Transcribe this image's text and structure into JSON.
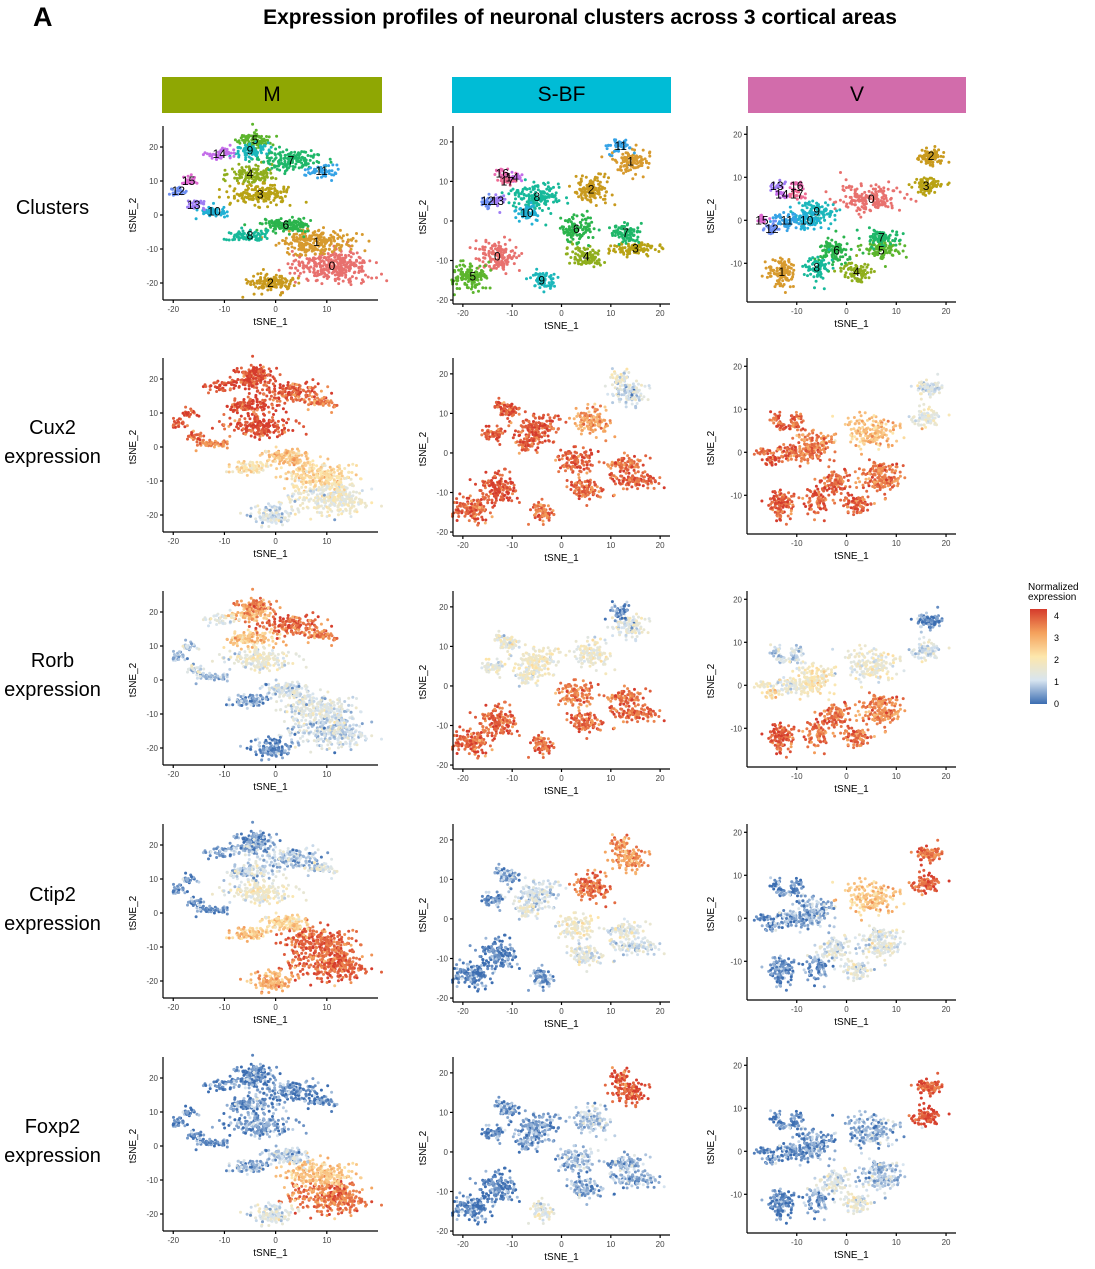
{
  "panel_letter": "A",
  "title": "Expression profiles of neuronal clusters across 3 cortical areas",
  "columns": [
    {
      "name": "M",
      "color": "#8fa703"
    },
    {
      "name": "S-BF",
      "color": "#00bcd6"
    },
    {
      "name": "V",
      "color": "#d26cab"
    }
  ],
  "rows": [
    {
      "label_line1": "Clusters",
      "label_line2": ""
    },
    {
      "label_line1": "Cux2",
      "label_line2": "expression"
    },
    {
      "label_line1": "Rorb",
      "label_line2": "expression"
    },
    {
      "label_line1": "Ctip2",
      "label_line2": "expression"
    },
    {
      "label_line1": "Foxp2",
      "label_line2": "expression"
    }
  ],
  "legend": {
    "title_line1": "Normalized",
    "title_line2": "expression",
    "ticks": [
      "4",
      "3",
      "2",
      "1",
      "0"
    ],
    "colors": [
      "#3b6db1",
      "#d8e5f0",
      "#fde7ac",
      "#f4a15c",
      "#d53b2c"
    ]
  },
  "chart_data": {
    "type": "scatter",
    "xlabel": "tSNE_1",
    "ylabel": "tSNE_2",
    "axes": {
      "M": {
        "xlim": [
          -22,
          20
        ],
        "ylim": [
          -25,
          25
        ],
        "xticks": [
          -20,
          -10,
          0,
          10
        ],
        "yticks": [
          20,
          10,
          0,
          -10,
          -20
        ]
      },
      "S-BF": {
        "xlim": [
          -22,
          22
        ],
        "ylim": [
          -21,
          23
        ],
        "xticks": [
          -20,
          -10,
          0,
          10,
          20
        ],
        "yticks": [
          20,
          10,
          0,
          -10,
          -20
        ]
      },
      "V": {
        "xlim": [
          -20,
          22
        ],
        "ylim": [
          -19,
          21
        ],
        "xticks": [
          -10,
          0,
          10,
          20
        ],
        "yticks": [
          20,
          10,
          0,
          -10
        ]
      }
    },
    "clusters": {
      "M": [
        {
          "id": "0",
          "x": 11,
          "y": -15,
          "sx": 6,
          "sy": 4,
          "n": 320
        },
        {
          "id": "1",
          "x": 8,
          "y": -8,
          "sx": 6,
          "sy": 3,
          "n": 230
        },
        {
          "id": "2",
          "x": -1,
          "y": -20,
          "sx": 3.5,
          "sy": 2.5,
          "n": 130
        },
        {
          "id": "3",
          "x": -3,
          "y": 6,
          "sx": 5,
          "sy": 2.5,
          "n": 170
        },
        {
          "id": "4",
          "x": -5,
          "y": 12,
          "sx": 4,
          "sy": 2,
          "n": 120
        },
        {
          "id": "5",
          "x": -4,
          "y": 22,
          "sx": 3,
          "sy": 1.8,
          "n": 90
        },
        {
          "id": "6",
          "x": 2,
          "y": -3,
          "sx": 4,
          "sy": 2,
          "n": 130
        },
        {
          "id": "7",
          "x": 3,
          "y": 16,
          "sx": 5,
          "sy": 2.5,
          "n": 150
        },
        {
          "id": "8",
          "x": -5,
          "y": -6,
          "sx": 3,
          "sy": 1.5,
          "n": 80
        },
        {
          "id": "9",
          "x": -5,
          "y": 19,
          "sx": 3,
          "sy": 1.5,
          "n": 80
        },
        {
          "id": "10",
          "x": -12,
          "y": 1,
          "sx": 2.5,
          "sy": 1.2,
          "n": 50
        },
        {
          "id": "11",
          "x": 9,
          "y": 13,
          "sx": 2.5,
          "sy": 1.5,
          "n": 50
        },
        {
          "id": "12",
          "x": -19,
          "y": 7,
          "sx": 1.3,
          "sy": 1.2,
          "n": 25
        },
        {
          "id": "13",
          "x": -16,
          "y": 3,
          "sx": 1.5,
          "sy": 1.2,
          "n": 30
        },
        {
          "id": "14",
          "x": -11,
          "y": 18,
          "sx": 2.5,
          "sy": 1.5,
          "n": 40
        },
        {
          "id": "15",
          "x": -17,
          "y": 10,
          "sx": 1.3,
          "sy": 1.2,
          "n": 25
        }
      ],
      "S-BF": [
        {
          "id": "0",
          "x": -13,
          "y": -9,
          "sx": 3,
          "sy": 3,
          "n": 140
        },
        {
          "id": "1",
          "x": 14,
          "y": 15,
          "sx": 3,
          "sy": 2.5,
          "n": 110
        },
        {
          "id": "2",
          "x": 6,
          "y": 8,
          "sx": 3,
          "sy": 3,
          "n": 120
        },
        {
          "id": "3",
          "x": 15,
          "y": -7,
          "sx": 4,
          "sy": 1.5,
          "n": 100
        },
        {
          "id": "4",
          "x": 5,
          "y": -9,
          "sx": 3,
          "sy": 2,
          "n": 100
        },
        {
          "id": "5",
          "x": -18,
          "y": -14,
          "sx": 3,
          "sy": 3,
          "n": 140
        },
        {
          "id": "6",
          "x": 3,
          "y": -2,
          "sx": 3,
          "sy": 3,
          "n": 110
        },
        {
          "id": "7",
          "x": 13,
          "y": -3,
          "sx": 3,
          "sy": 2,
          "n": 90
        },
        {
          "id": "8",
          "x": -5,
          "y": 6,
          "sx": 4,
          "sy": 3,
          "n": 150
        },
        {
          "id": "9",
          "x": -4,
          "y": -15,
          "sx": 2,
          "sy": 2,
          "n": 70
        },
        {
          "id": "10",
          "x": -7,
          "y": 2,
          "sx": 2,
          "sy": 1.8,
          "n": 50
        },
        {
          "id": "11",
          "x": 12,
          "y": 19,
          "sx": 1.8,
          "sy": 1.5,
          "n": 40
        },
        {
          "id": "12",
          "x": -15,
          "y": 5,
          "sx": 1,
          "sy": 1.5,
          "n": 25
        },
        {
          "id": "13",
          "x": -13,
          "y": 5,
          "sx": 1,
          "sy": 1.5,
          "n": 25
        },
        {
          "id": "14",
          "x": -10,
          "y": 11,
          "sx": 1.5,
          "sy": 1,
          "n": 25
        },
        {
          "id": "16",
          "x": -12,
          "y": 12,
          "sx": 1.5,
          "sy": 1,
          "n": 25
        },
        {
          "id": "17",
          "x": -11,
          "y": 10,
          "sx": 1.5,
          "sy": 1,
          "n": 25
        }
      ],
      "V": [
        {
          "id": "0",
          "x": 5,
          "y": 5,
          "sx": 5,
          "sy": 3,
          "n": 170
        },
        {
          "id": "1",
          "x": -13,
          "y": -12,
          "sx": 2.5,
          "sy": 3,
          "n": 110
        },
        {
          "id": "2",
          "x": 17,
          "y": 15,
          "sx": 2.5,
          "sy": 1.5,
          "n": 90
        },
        {
          "id": "3",
          "x": 16,
          "y": 8,
          "sx": 2.5,
          "sy": 1.8,
          "n": 90
        },
        {
          "id": "4",
          "x": 2,
          "y": -12,
          "sx": 2.5,
          "sy": 2,
          "n": 80
        },
        {
          "id": "5",
          "x": 7,
          "y": -7,
          "sx": 3,
          "sy": 2,
          "n": 90
        },
        {
          "id": "6",
          "x": -2,
          "y": -7,
          "sx": 3,
          "sy": 2.5,
          "n": 100
        },
        {
          "id": "7",
          "x": 7,
          "y": -4,
          "sx": 3,
          "sy": 1.5,
          "n": 70
        },
        {
          "id": "8",
          "x": -6,
          "y": -11,
          "sx": 2,
          "sy": 2.5,
          "n": 70
        },
        {
          "id": "9",
          "x": -6,
          "y": 2,
          "sx": 3,
          "sy": 2,
          "n": 90
        },
        {
          "id": "10",
          "x": -8,
          "y": 0,
          "sx": 3,
          "sy": 2,
          "n": 80
        },
        {
          "id": "11",
          "x": -12,
          "y": 0,
          "sx": 2,
          "sy": 1.5,
          "n": 50
        },
        {
          "id": "12",
          "x": -15,
          "y": -2,
          "sx": 1.2,
          "sy": 1.2,
          "n": 30
        },
        {
          "id": "13",
          "x": -14,
          "y": 8,
          "sx": 1.2,
          "sy": 1,
          "n": 20
        },
        {
          "id": "14",
          "x": -13,
          "y": 6,
          "sx": 1.2,
          "sy": 1,
          "n": 20
        },
        {
          "id": "15",
          "x": -17,
          "y": 0,
          "sx": 1,
          "sy": 1,
          "n": 20
        },
        {
          "id": "16",
          "x": -10,
          "y": 8,
          "sx": 1.2,
          "sy": 1,
          "n": 20
        },
        {
          "id": "17",
          "x": -10,
          "y": 6,
          "sx": 1.2,
          "sy": 1,
          "n": 20
        }
      ]
    },
    "cluster_colors": {
      "0": "#e8716e",
      "1": "#d79a2e",
      "2": "#c99a1e",
      "3": "#b8a214",
      "4": "#8fae1c",
      "5": "#5cb52d",
      "6": "#2bb44c",
      "7": "#1fb769",
      "8": "#17b99a",
      "9": "#1cb7bb",
      "10": "#21b0d4",
      "11": "#36a3e6",
      "12": "#6e8ff2",
      "13": "#9e7df3",
      "14": "#c36de9",
      "15": "#de68d0",
      "16": "#e96ab0",
      "17": "#ee6b93"
    },
    "genes": {
      "Cux2": {
        "M": {
          "0": 1.5,
          "1": 2.2,
          "2": 1.1,
          "3": 3.8,
          "4": 3.9,
          "5": 3.9,
          "6": 2.5,
          "7": 3.7,
          "8": 2,
          "9": 3.9,
          "10": 3.2,
          "11": 3.3,
          "12": 3.7,
          "13": 3.5,
          "14": 3.8,
          "15": 3.8
        },
        "S-BF": {
          "0": 3.8,
          "1": 1,
          "2": 3,
          "3": 3.6,
          "4": 3.6,
          "5": 3.6,
          "6": 3.6,
          "7": 3.4,
          "8": 3.7,
          "9": 3.3,
          "10": 3.6,
          "11": 1.5,
          "12": 3.8,
          "13": 3.7,
          "14": 3.7,
          "16": 3.6,
          "17": 3.6
        },
        "V": {
          "0": 2.6,
          "1": 3.7,
          "2": 1.2,
          "3": 1.3,
          "4": 3.6,
          "5": 3.4,
          "6": 3.6,
          "7": 3.4,
          "8": 3.6,
          "9": 3.3,
          "10": 3.4,
          "11": 3.6,
          "12": 3.8,
          "13": 3.7,
          "14": 3.7,
          "15": 3.7,
          "16": 3.6,
          "17": 3.6
        }
      },
      "Rorb": {
        "M": {
          "0": 1,
          "1": 1.2,
          "2": 0.3,
          "3": 1.4,
          "4": 2.5,
          "5": 3.3,
          "6": 1,
          "7": 3.6,
          "8": 0.5,
          "9": 2.8,
          "10": 0.7,
          "11": 3.3,
          "12": 0.6,
          "13": 1,
          "14": 1.2,
          "15": 0.8
        },
        "S-BF": {
          "0": 3.6,
          "1": 1.2,
          "2": 1.5,
          "3": 3.5,
          "4": 3.6,
          "5": 3.6,
          "6": 3.3,
          "7": 3.4,
          "8": 1.6,
          "9": 3.4,
          "10": 1.4,
          "11": 0.3,
          "12": 1.5,
          "13": 1.3,
          "14": 1.4,
          "16": 1.3,
          "17": 1.3
        },
        "V": {
          "0": 1.5,
          "1": 3.7,
          "2": 0.3,
          "3": 1,
          "4": 3.4,
          "5": 3.2,
          "6": 3.5,
          "7": 3.3,
          "8": 3.4,
          "9": 1.8,
          "10": 1.8,
          "11": 1.3,
          "12": 2,
          "13": 1,
          "14": 1,
          "15": 1.8,
          "16": 1,
          "17": 1
        }
      },
      "Ctip2": {
        "M": {
          "0": 3.6,
          "1": 3.6,
          "2": 2.8,
          "3": 1.5,
          "4": 1,
          "5": 0.4,
          "6": 2.2,
          "7": 0.8,
          "8": 2.5,
          "9": 0.6,
          "10": 0.3,
          "11": 1.2,
          "12": 0.3,
          "13": 0.3,
          "14": 0.4,
          "15": 0.3
        },
        "S-BF": {
          "0": 0.2,
          "1": 3,
          "2": 3.5,
          "3": 1,
          "4": 1.3,
          "5": 0.2,
          "6": 1.5,
          "7": 1.2,
          "8": 1,
          "9": 0.3,
          "10": 1.3,
          "11": 3.2,
          "12": 0.4,
          "13": 0.4,
          "14": 0.4,
          "16": 0.4,
          "17": 0.4
        },
        "V": {
          "0": 2.5,
          "1": 0.3,
          "2": 3.5,
          "3": 3.6,
          "4": 1.2,
          "5": 1.3,
          "6": 1.2,
          "7": 1.2,
          "8": 0.3,
          "9": 0.6,
          "10": 0.5,
          "11": 0.5,
          "12": 0.3,
          "13": 0.3,
          "14": 0.3,
          "15": 0.3,
          "16": 0.3,
          "17": 0.3
        }
      },
      "Foxp2": {
        "M": {
          "0": 3.4,
          "1": 2.5,
          "2": 1.2,
          "3": 0.4,
          "4": 0.4,
          "5": 0.3,
          "6": 0.8,
          "7": 0.3,
          "8": 0.6,
          "9": 0.3,
          "10": 0.3,
          "11": 0.3,
          "12": 0.2,
          "13": 0.2,
          "14": 0.2,
          "15": 0.2
        },
        "S-BF": {
          "0": 0.2,
          "1": 3.7,
          "2": 0.8,
          "3": 0.5,
          "4": 0.6,
          "5": 0.2,
          "6": 0.6,
          "7": 0.5,
          "8": 0.4,
          "9": 1.2,
          "10": 0.4,
          "11": 3.8,
          "12": 0.3,
          "13": 0.3,
          "14": 0.3,
          "16": 0.3,
          "17": 0.3
        },
        "V": {
          "0": 0.6,
          "1": 0.2,
          "2": 3.7,
          "3": 3.8,
          "4": 1.3,
          "5": 0.8,
          "6": 1.2,
          "7": 0.7,
          "8": 0.4,
          "9": 0.4,
          "10": 0.4,
          "11": 0.3,
          "12": 0.3,
          "13": 0.3,
          "14": 0.3,
          "15": 0.3,
          "16": 0.3,
          "17": 0.3
        }
      }
    }
  }
}
